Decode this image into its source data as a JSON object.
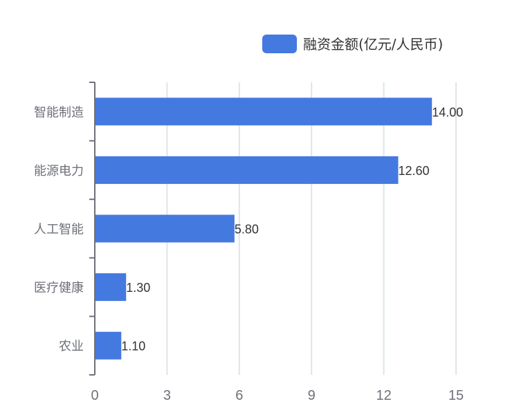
{
  "chart_data": {
    "type": "bar",
    "orientation": "horizontal",
    "categories": [
      "智能制造",
      "能源电力",
      "人工智能",
      "医疗健康",
      "农业"
    ],
    "series": [
      {
        "name": "融资金额(亿元/人民币)",
        "values": [
          14.0,
          12.6,
          5.8,
          1.3,
          1.1
        ],
        "value_labels": [
          "14.00",
          "12.60",
          "5.80",
          "1.30",
          "1.10"
        ],
        "color": "#4479e0"
      }
    ],
    "xlim": [
      0,
      15
    ],
    "xticks": [
      "0",
      "3",
      "6",
      "9",
      "12",
      "15"
    ],
    "grid": true,
    "legend_position": "top-right"
  }
}
